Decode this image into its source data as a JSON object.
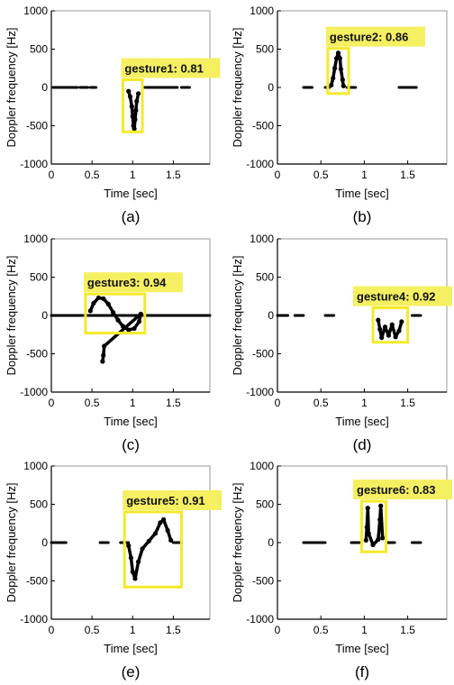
{
  "colors": {
    "detection_box": "#f5ea2a",
    "label_background": "#f5ef62",
    "signal": "#000000",
    "axis": "#000000",
    "tick_label": "#000000"
  },
  "chart_data": [
    {
      "type": "scatter",
      "panel_label": "(a)",
      "xlabel": "Time [sec]",
      "ylabel": "Doppler frequency [Hz]",
      "xlim": [
        0,
        1.95
      ],
      "ylim": [
        -1000,
        1000
      ],
      "xticks": [
        0,
        0.5,
        1,
        1.5
      ],
      "xtick_labels": [
        "0",
        "0.5",
        "1",
        "1.5"
      ],
      "yticks": [
        -1000,
        -500,
        0,
        500,
        1000
      ],
      "ytick_labels": [
        "-1000",
        "-500",
        "0",
        "500",
        "1000"
      ],
      "grid": false,
      "detection": {
        "label": "gesture1: 0.81",
        "x": [
          0.88,
          1.12
        ],
        "y": [
          -580,
          100
        ]
      },
      "gesture_points": [
        {
          "x": 0.95,
          "y": -50
        },
        {
          "x": 0.97,
          "y": -120
        },
        {
          "x": 0.99,
          "y": -250
        },
        {
          "x": 1.0,
          "y": -380
        },
        {
          "x": 1.01,
          "y": -500
        },
        {
          "x": 1.02,
          "y": -540
        },
        {
          "x": 1.03,
          "y": -420
        },
        {
          "x": 1.04,
          "y": -300
        },
        {
          "x": 1.05,
          "y": -180
        },
        {
          "x": 1.07,
          "y": -80
        }
      ],
      "baseline": [
        [
          0.02,
          0.32
        ],
        [
          0.35,
          0.45
        ],
        [
          0.48,
          0.55
        ],
        [
          1.15,
          1.55
        ],
        [
          1.6,
          1.7
        ]
      ]
    },
    {
      "type": "scatter",
      "panel_label": "(b)",
      "xlabel": "Time [sec]",
      "ylabel": "Doppler frequency [Hz]",
      "xlim": [
        0,
        1.95
      ],
      "ylim": [
        -1000,
        1000
      ],
      "xticks": [
        0,
        0.5,
        1,
        1.5
      ],
      "xtick_labels": [
        "0",
        "0.5",
        "1",
        "1.5"
      ],
      "yticks": [
        -1000,
        -500,
        0,
        500,
        1000
      ],
      "ytick_labels": [
        "-1000",
        "-500",
        "0",
        "500",
        "1000"
      ],
      "grid": false,
      "detection": {
        "label": "gesture2: 0.86",
        "x": [
          0.58,
          0.82
        ],
        "y": [
          -80,
          510
        ]
      },
      "gesture_points": [
        {
          "x": 0.62,
          "y": 30
        },
        {
          "x": 0.64,
          "y": 120
        },
        {
          "x": 0.66,
          "y": 250
        },
        {
          "x": 0.68,
          "y": 380
        },
        {
          "x": 0.7,
          "y": 450
        },
        {
          "x": 0.72,
          "y": 380
        },
        {
          "x": 0.73,
          "y": 240
        },
        {
          "x": 0.75,
          "y": 100
        },
        {
          "x": 0.76,
          "y": 20
        }
      ],
      "baseline": [
        [
          0.3,
          0.4
        ],
        [
          0.55,
          0.6
        ],
        [
          0.8,
          0.9
        ],
        [
          1.4,
          1.6
        ]
      ]
    },
    {
      "type": "scatter",
      "panel_label": "(c)",
      "xlabel": "Time [sec]",
      "ylabel": "Doppler frequency [Hz]",
      "xlim": [
        0,
        1.95
      ],
      "ylim": [
        -1000,
        1000
      ],
      "xticks": [
        0,
        0.5,
        1,
        1.5
      ],
      "xtick_labels": [
        "0",
        "0.5",
        "1",
        "1.5"
      ],
      "yticks": [
        -1000,
        -500,
        0,
        500,
        1000
      ],
      "ytick_labels": [
        "-1000",
        "-500",
        "0",
        "500",
        "1000"
      ],
      "grid": false,
      "detection": {
        "label": "gesture3: 0.94",
        "x": [
          0.42,
          1.15
        ],
        "y": [
          -230,
          280
        ]
      },
      "gesture_points": [
        {
          "x": 0.48,
          "y": 60
        },
        {
          "x": 0.52,
          "y": 160
        },
        {
          "x": 0.58,
          "y": 230
        },
        {
          "x": 0.64,
          "y": 220
        },
        {
          "x": 0.7,
          "y": 150
        },
        {
          "x": 0.76,
          "y": 40
        },
        {
          "x": 0.82,
          "y": -60
        },
        {
          "x": 0.88,
          "y": -140
        },
        {
          "x": 0.95,
          "y": -190
        },
        {
          "x": 1.02,
          "y": -170
        },
        {
          "x": 1.08,
          "y": -80
        },
        {
          "x": 1.1,
          "y": 20
        },
        {
          "x": 0.65,
          "y": -400
        },
        {
          "x": 0.64,
          "y": -520
        },
        {
          "x": 0.63,
          "y": -600
        }
      ],
      "baseline": [
        [
          0.0,
          1.95
        ]
      ]
    },
    {
      "type": "scatter",
      "panel_label": "(d)",
      "xlabel": "Time [sec]",
      "ylabel": "Doppler frequency [Hz]",
      "xlim": [
        0,
        1.95
      ],
      "ylim": [
        -1000,
        1000
      ],
      "xticks": [
        0,
        0.5,
        1,
        1.5
      ],
      "xtick_labels": [
        "0",
        "0.5",
        "1",
        "1.5"
      ],
      "yticks": [
        -1000,
        -500,
        0,
        500,
        1000
      ],
      "ytick_labels": [
        "-1000",
        "-500",
        "0",
        "500",
        "1000"
      ],
      "grid": false,
      "detection": {
        "label": "gesture4: 0.92",
        "x": [
          1.1,
          1.5
        ],
        "y": [
          -350,
          100
        ]
      },
      "gesture_points": [
        {
          "x": 1.16,
          "y": -60
        },
        {
          "x": 1.18,
          "y": -180
        },
        {
          "x": 1.2,
          "y": -290
        },
        {
          "x": 1.24,
          "y": -150
        },
        {
          "x": 1.28,
          "y": -260
        },
        {
          "x": 1.32,
          "y": -120
        },
        {
          "x": 1.36,
          "y": -280
        },
        {
          "x": 1.4,
          "y": -200
        },
        {
          "x": 1.43,
          "y": -80
        }
      ],
      "baseline": [
        [
          0.0,
          0.12
        ],
        [
          0.2,
          0.3
        ],
        [
          0.55,
          0.65
        ],
        [
          1.55,
          1.65
        ]
      ]
    },
    {
      "type": "scatter",
      "panel_label": "(e)",
      "xlabel": "Time [sec]",
      "ylabel": "Doppler frequency [Hz]",
      "xlim": [
        0,
        1.95
      ],
      "ylim": [
        -1000,
        1000
      ],
      "xticks": [
        0,
        0.5,
        1,
        1.5
      ],
      "xtick_labels": [
        "0",
        "0.5",
        "1",
        "1.5"
      ],
      "yticks": [
        -1000,
        -500,
        0,
        500,
        1000
      ],
      "ytick_labels": [
        "-1000",
        "-500",
        "0",
        "500",
        "1000"
      ],
      "grid": false,
      "detection": {
        "label": "gesture5: 0.91",
        "x": [
          0.9,
          1.6
        ],
        "y": [
          -580,
          400
        ]
      },
      "gesture_points": [
        {
          "x": 0.95,
          "y": -40
        },
        {
          "x": 0.98,
          "y": -200
        },
        {
          "x": 1.0,
          "y": -380
        },
        {
          "x": 1.03,
          "y": -470
        },
        {
          "x": 1.07,
          "y": -250
        },
        {
          "x": 1.12,
          "y": -80
        },
        {
          "x": 1.2,
          "y": 20
        },
        {
          "x": 1.28,
          "y": 120
        },
        {
          "x": 1.34,
          "y": 260
        },
        {
          "x": 1.38,
          "y": 300
        },
        {
          "x": 1.43,
          "y": 160
        },
        {
          "x": 1.47,
          "y": 30
        }
      ],
      "baseline": [
        [
          0.0,
          0.18
        ],
        [
          0.6,
          0.7
        ],
        [
          0.85,
          0.95
        ],
        [
          1.5,
          1.6
        ]
      ]
    },
    {
      "type": "scatter",
      "panel_label": "(f)",
      "xlabel": "Time [sec]",
      "ylabel": "Doppler frequency [Hz]",
      "xlim": [
        0,
        1.95
      ],
      "ylim": [
        -1000,
        1000
      ],
      "xticks": [
        0,
        0.5,
        1,
        1.5
      ],
      "xtick_labels": [
        "0",
        "0.5",
        "1",
        "1.5"
      ],
      "yticks": [
        -1000,
        -500,
        0,
        500,
        1000
      ],
      "ytick_labels": [
        "-1000",
        "-500",
        "0",
        "500",
        "1000"
      ],
      "grid": false,
      "detection": {
        "label": "gesture6: 0.83",
        "x": [
          0.97,
          1.25
        ],
        "y": [
          -120,
          540
        ]
      },
      "gesture_points": [
        {
          "x": 1.02,
          "y": 30
        },
        {
          "x": 1.03,
          "y": 200
        },
        {
          "x": 1.04,
          "y": 450
        },
        {
          "x": 1.05,
          "y": 120
        },
        {
          "x": 1.1,
          "y": -30
        },
        {
          "x": 1.16,
          "y": 40
        },
        {
          "x": 1.18,
          "y": 300
        },
        {
          "x": 1.19,
          "y": 480
        },
        {
          "x": 1.21,
          "y": 60
        }
      ],
      "baseline": [
        [
          0.3,
          0.55
        ],
        [
          0.85,
          0.95
        ],
        [
          1.25,
          1.35
        ],
        [
          1.55,
          1.65
        ]
      ]
    }
  ]
}
